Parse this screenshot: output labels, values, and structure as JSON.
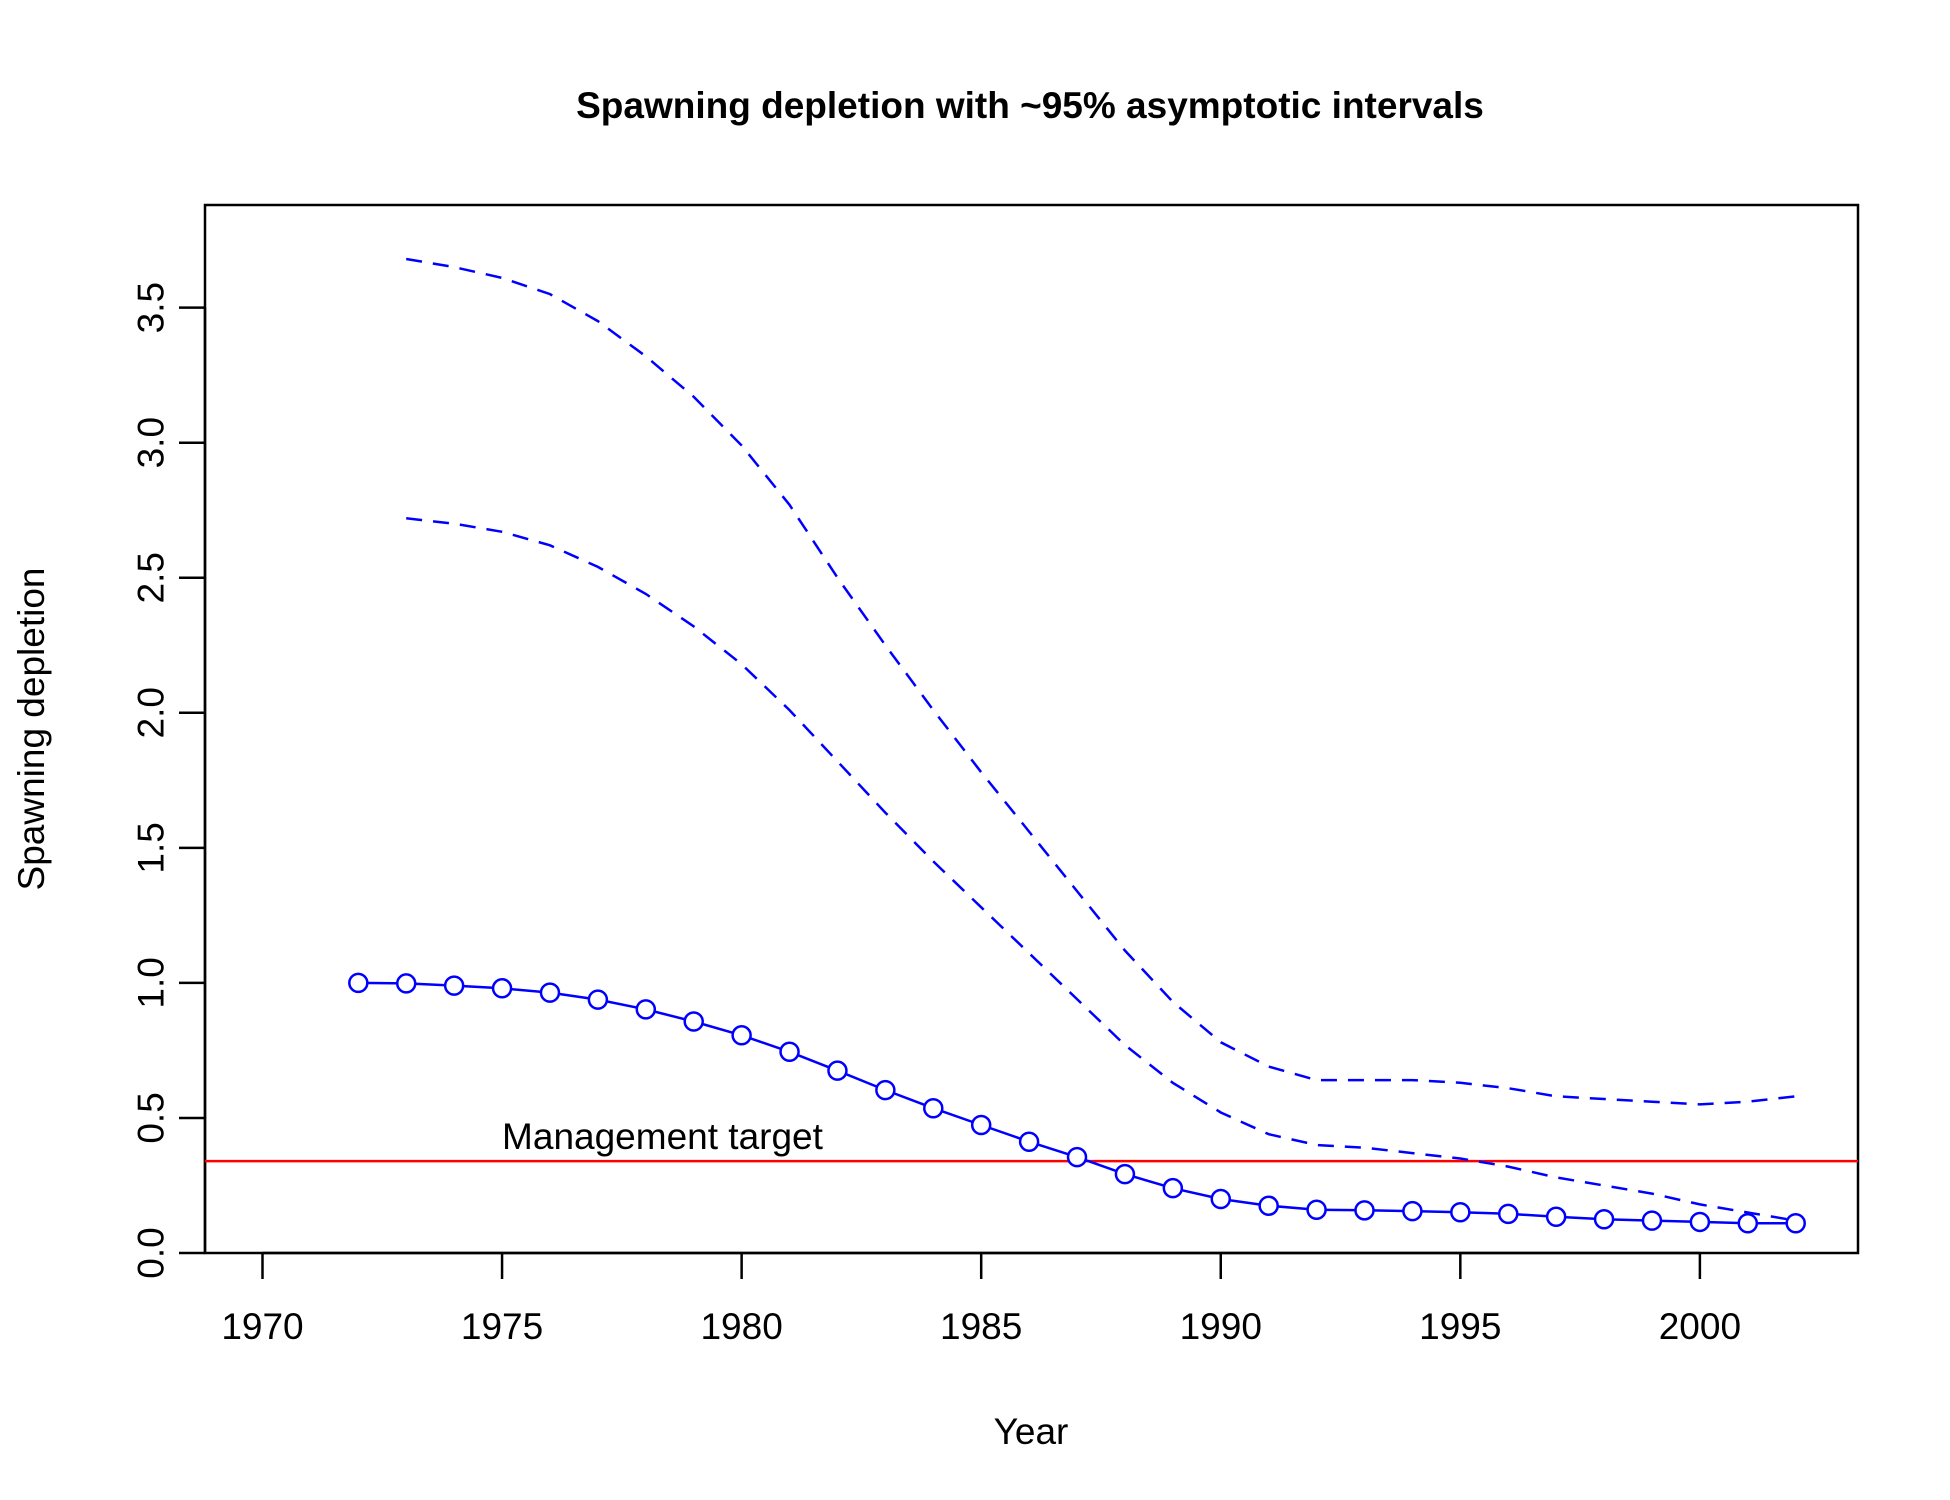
{
  "chart_data": {
    "type": "line",
    "title": "Spawning depletion with ~95% asymptotic intervals",
    "xlabel": "Year",
    "ylabel": "Spawning depletion",
    "xlim": [
      1968.8,
      2003.3
    ],
    "ylim": [
      0.0,
      3.88
    ],
    "x_ticks": [
      1970,
      1975,
      1980,
      1985,
      1990,
      1995,
      2000
    ],
    "y_ticks": [
      0.0,
      0.5,
      1.0,
      1.5,
      2.0,
      2.5,
      3.0,
      3.5
    ],
    "x_tick_labels": [
      "1970",
      "1975",
      "1980",
      "1985",
      "1990",
      "1995",
      "2000"
    ],
    "y_tick_labels": [
      "0.0",
      "0.5",
      "1.0",
      "1.5",
      "2.0",
      "2.5",
      "3.0",
      "3.5"
    ],
    "grid": false,
    "series": [
      {
        "role": "estimate",
        "style": "solid-with-circles",
        "color": "#0000ff",
        "x": [
          1972,
          1973,
          1974,
          1975,
          1976,
          1977,
          1978,
          1979,
          1980,
          1981,
          1982,
          1983,
          1984,
          1985,
          1986,
          1987,
          1988,
          1989,
          1990,
          1991,
          1992,
          1993,
          1994,
          1995,
          1996,
          1997,
          1998,
          1999,
          2000,
          2001,
          2002
        ],
        "y": [
          1.0,
          0.998,
          0.99,
          0.98,
          0.964,
          0.938,
          0.902,
          0.857,
          0.806,
          0.745,
          0.675,
          0.603,
          0.536,
          0.474,
          0.412,
          0.355,
          0.292,
          0.24,
          0.2,
          0.175,
          0.16,
          0.158,
          0.155,
          0.151,
          0.145,
          0.134,
          0.125,
          0.12,
          0.115,
          0.11,
          0.11
        ]
      },
      {
        "role": "upper-interval",
        "style": "dashed",
        "color": "#0000ff",
        "x": [
          1973,
          1974,
          1975,
          1976,
          1977,
          1978,
          1979,
          1980,
          1981,
          1982,
          1983,
          1984,
          1985,
          1986,
          1987,
          1988,
          1989,
          1990,
          1991,
          1992,
          1993,
          1994,
          1995,
          1996,
          1997,
          1998,
          1999,
          2000,
          2001,
          2002
        ],
        "y": [
          3.68,
          3.65,
          3.61,
          3.55,
          3.45,
          3.32,
          3.17,
          2.99,
          2.77,
          2.5,
          2.25,
          2.01,
          1.78,
          1.56,
          1.34,
          1.12,
          0.93,
          0.78,
          0.69,
          0.64,
          0.64,
          0.64,
          0.63,
          0.61,
          0.58,
          0.57,
          0.56,
          0.55,
          0.56,
          0.58
        ]
      },
      {
        "role": "lower-interval",
        "style": "dashed",
        "color": "#0000ff",
        "x": [
          1973,
          1974,
          1975,
          1976,
          1977,
          1978,
          1979,
          1980,
          1981,
          1982,
          1983,
          1984,
          1985,
          1986,
          1987,
          1988,
          1989,
          1990,
          1991,
          1992,
          1993,
          1994,
          1995,
          1996,
          1997,
          1998,
          1999,
          2000,
          2001,
          2002
        ],
        "y": [
          2.72,
          2.7,
          2.67,
          2.62,
          2.54,
          2.44,
          2.32,
          2.18,
          2.01,
          1.82,
          1.63,
          1.45,
          1.28,
          1.11,
          0.94,
          0.77,
          0.63,
          0.52,
          0.44,
          0.4,
          0.39,
          0.37,
          0.35,
          0.32,
          0.28,
          0.25,
          0.22,
          0.18,
          0.15,
          0.12
        ]
      }
    ],
    "reference_line": {
      "y": 0.34,
      "color": "#ff0000",
      "label": "Management target",
      "label_x": 1975
    }
  }
}
